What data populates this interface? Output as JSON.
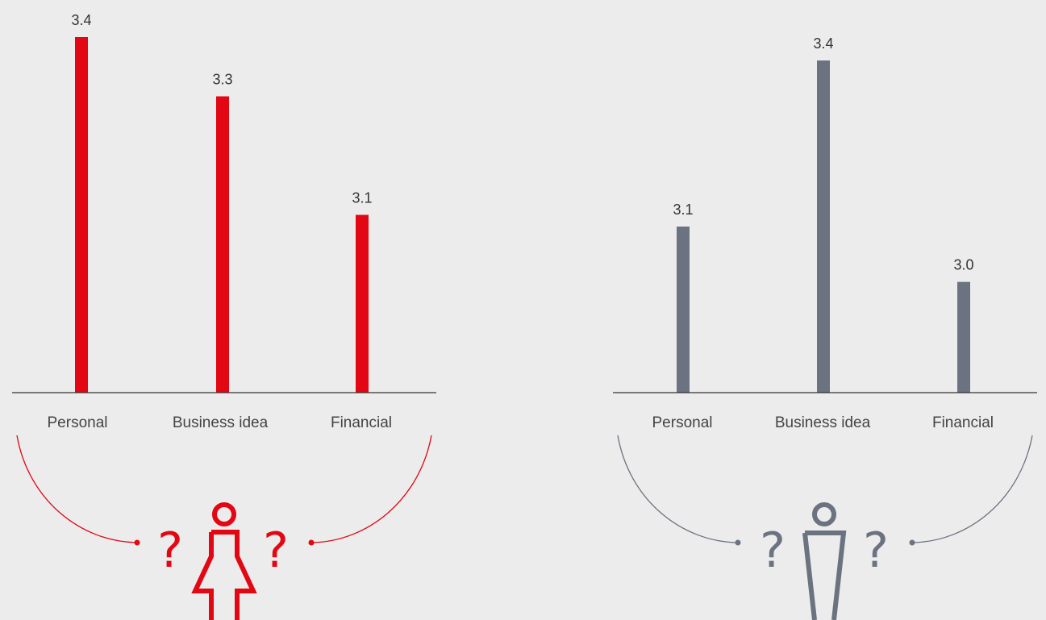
{
  "chart_data": [
    {
      "type": "bar",
      "categories": [
        "Personal",
        "Business idea",
        "Financial"
      ],
      "values": [
        3.4,
        3.3,
        3.1
      ],
      "value_labels": [
        "3.4",
        "3.3",
        "3.1"
      ],
      "title": "",
      "xlabel": "",
      "ylabel": "",
      "ylim": [
        2.8,
        3.4
      ],
      "grid": false,
      "bar_color": "#e30613",
      "icon": "female-person-icon"
    },
    {
      "type": "bar",
      "categories": [
        "Personal",
        "Business idea",
        "Financial"
      ],
      "values": [
        3.1,
        3.4,
        3.0
      ],
      "value_labels": [
        "3.1",
        "3.4",
        "3.0"
      ],
      "title": "",
      "xlabel": "",
      "ylabel": "",
      "ylim": [
        2.8,
        3.4
      ],
      "grid": false,
      "bar_color": "#6b7280",
      "icon": "male-person-icon"
    }
  ],
  "decoration": {
    "question_mark": "?"
  },
  "colors": {
    "background": "#ececec",
    "axis": "#333333",
    "female_accent": "#e30613",
    "male_accent": "#6b7280"
  }
}
